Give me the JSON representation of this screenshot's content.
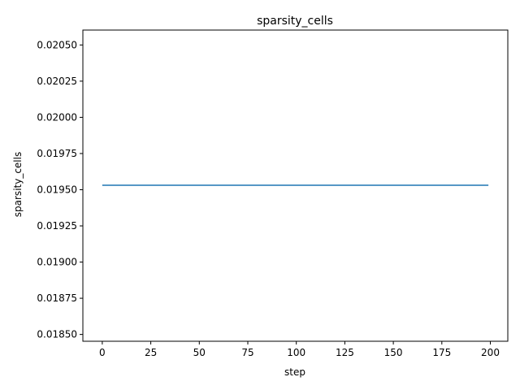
{
  "chart_data": {
    "type": "line",
    "title": "sparsity_cells",
    "xlabel": "step",
    "ylabel": "sparsity_cells",
    "xlim": [
      -10,
      209
    ],
    "ylim": [
      0.018453,
      0.020603
    ],
    "xticks": [
      0,
      25,
      50,
      75,
      100,
      125,
      150,
      175,
      200
    ],
    "xtick_labels": [
      "0",
      "25",
      "50",
      "75",
      "100",
      "125",
      "150",
      "175",
      "200"
    ],
    "yticks": [
      0.0185,
      0.01875,
      0.019,
      0.01925,
      0.0195,
      0.01975,
      0.02,
      0.02025,
      0.0205
    ],
    "ytick_labels": [
      "0.01850",
      "0.01875",
      "0.01900",
      "0.01925",
      "0.01950",
      "0.01975",
      "0.02000",
      "0.02025",
      "0.02050"
    ],
    "grid": false,
    "series": [
      {
        "color": "#1f77b4",
        "x": [
          0,
          199
        ],
        "y": [
          0.019531,
          0.019531
        ]
      }
    ]
  }
}
